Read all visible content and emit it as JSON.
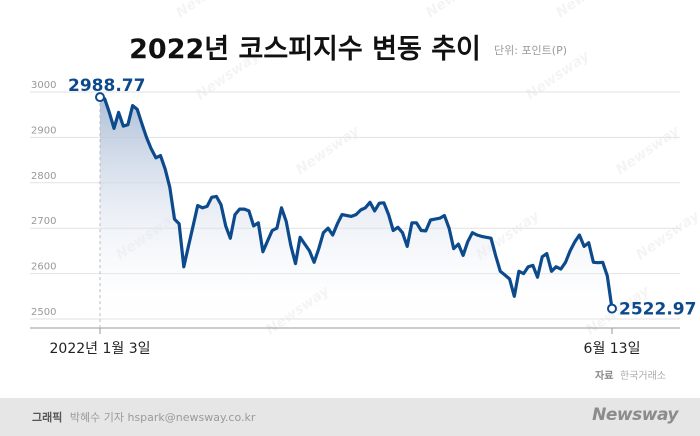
{
  "title": "2022년 코스피지수 변동 추이",
  "unit_label": "단위: 포인트(P)",
  "source": {
    "label": "자료",
    "value": "한국거래소"
  },
  "credit": {
    "label": "그래픽",
    "value": "박혜수 기자 hspark@newsway.co.kr"
  },
  "brand": "Newsway",
  "colors": {
    "line": "#0d4a8c",
    "area_top": "#aebfd8",
    "grid": "#e2e2e2",
    "axis": "#999999"
  },
  "chart_data": {
    "type": "area",
    "title": "2022년 코스피지수 변동 추이",
    "ylabel": "",
    "xlabel": "",
    "ylim": [
      2500,
      3000
    ],
    "y_ticks": [
      3000,
      2900,
      2800,
      2700,
      2600,
      2500
    ],
    "x_tick_labels": [
      "2022년 1월 3일",
      "6월 13일"
    ],
    "start_label": "2988.77",
    "end_label": "2522.97",
    "series": [
      {
        "values": [
          2988.77,
          2985,
          2955,
          2920,
          2955,
          2925,
          2928,
          2970,
          2962,
          2930,
          2900,
          2875,
          2855,
          2860,
          2830,
          2790,
          2720,
          2710,
          2615,
          2660,
          2705,
          2750,
          2745,
          2748,
          2768,
          2770,
          2752,
          2705,
          2678,
          2730,
          2742,
          2742,
          2738,
          2705,
          2712,
          2648,
          2672,
          2695,
          2700,
          2745,
          2715,
          2662,
          2622,
          2680,
          2665,
          2650,
          2625,
          2655,
          2690,
          2700,
          2685,
          2710,
          2730,
          2728,
          2726,
          2730,
          2740,
          2745,
          2757,
          2738,
          2755,
          2756,
          2730,
          2695,
          2702,
          2690,
          2660,
          2712,
          2712,
          2695,
          2694,
          2718,
          2720,
          2722,
          2728,
          2700,
          2655,
          2665,
          2640,
          2670,
          2690,
          2685,
          2682,
          2680,
          2678,
          2640,
          2605,
          2597,
          2588,
          2550,
          2605,
          2600,
          2615,
          2618,
          2592,
          2637,
          2644,
          2605,
          2615,
          2610,
          2625,
          2650,
          2670,
          2685,
          2660,
          2668,
          2625,
          2624,
          2625,
          2595,
          2522.97
        ]
      }
    ]
  }
}
